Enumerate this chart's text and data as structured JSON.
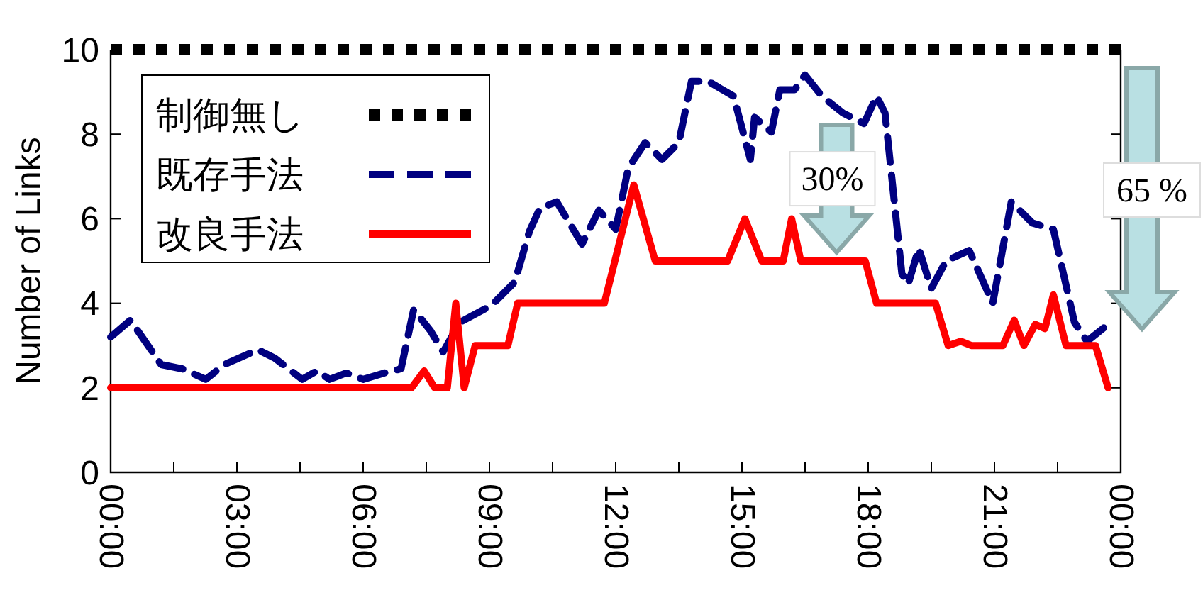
{
  "chart_data": {
    "type": "line",
    "ylabel": "Number of Links",
    "xlim": [
      0,
      24
    ],
    "ylim": [
      0,
      10
    ],
    "xticks": [
      {
        "value": 0,
        "label": "00:00"
      },
      {
        "value": 1.5,
        "label": null
      },
      {
        "value": 3,
        "label": "03:00"
      },
      {
        "value": 4.5,
        "label": null
      },
      {
        "value": 6,
        "label": "06:00"
      },
      {
        "value": 7.5,
        "label": null
      },
      {
        "value": 9,
        "label": "09:00"
      },
      {
        "value": 10.5,
        "label": null
      },
      {
        "value": 12,
        "label": "12:00"
      },
      {
        "value": 13.5,
        "label": null
      },
      {
        "value": 15,
        "label": "15:00"
      },
      {
        "value": 16.5,
        "label": null
      },
      {
        "value": 18,
        "label": "18:00"
      },
      {
        "value": 19.5,
        "label": null
      },
      {
        "value": 21,
        "label": "21:00"
      },
      {
        "value": 22.5,
        "label": null
      },
      {
        "value": 24,
        "label": "00:00"
      }
    ],
    "yticks": [
      0,
      2,
      4,
      6,
      8,
      10
    ],
    "grid": false,
    "legend": "top left",
    "annotations": [
      {
        "text": "30%",
        "x": 17.25,
        "y": 5.2
      },
      "65 %"
    ],
    "series": [
      {
        "name": "制御無し",
        "color": "#000000",
        "line_style": "dotted",
        "x": [
          0,
          24
        ],
        "values": [
          10,
          10
        ]
      },
      {
        "name": "既存手法",
        "color": "#000080",
        "line_style": "dashed",
        "x": [
          0,
          0.47,
          1.2,
          1.7,
          2.26,
          2.7,
          3.5,
          3.9,
          4.55,
          4.9,
          5.2,
          5.6,
          6.0,
          6.5,
          6.9,
          7.2,
          7.6,
          7.9,
          8.3,
          9.05,
          9.6,
          9.95,
          10.2,
          10.6,
          11.2,
          11.6,
          12.0,
          12.3,
          12.7,
          13.1,
          13.5,
          13.8,
          14.2,
          14.8,
          15.2,
          15.3,
          15.7,
          15.9,
          16.25,
          16.5,
          16.9,
          17.4,
          17.9,
          18.2,
          18.4,
          18.8,
          18.95,
          19.2,
          19.5,
          19.85,
          20.4,
          20.96,
          21.4,
          21.9,
          22.4,
          22.9,
          23.2,
          23.7
        ],
        "values": [
          3.2,
          3.6,
          2.55,
          2.45,
          2.2,
          2.55,
          2.9,
          2.7,
          2.2,
          2.4,
          2.2,
          2.35,
          2.2,
          2.35,
          2.45,
          3.85,
          3.35,
          2.85,
          3.55,
          3.95,
          4.5,
          5.7,
          6.25,
          6.4,
          5.4,
          6.2,
          5.75,
          7.2,
          7.8,
          7.4,
          7.8,
          9.25,
          9.25,
          8.9,
          7.4,
          8.4,
          8.05,
          9.05,
          9.05,
          9.4,
          8.9,
          8.5,
          8.25,
          8.9,
          8.5,
          4.7,
          4.45,
          5.3,
          4.35,
          5.0,
          5.25,
          4.0,
          6.4,
          5.9,
          5.75,
          3.55,
          3.1,
          3.5
        ]
      },
      {
        "name": "改良手法",
        "color": "#ff0000",
        "line_style": "solid",
        "x": [
          0,
          7.15,
          7.45,
          7.7,
          8.0,
          8.2,
          8.4,
          8.66,
          9.44,
          9.67,
          11.73,
          12.43,
          12.94,
          14.66,
          15.07,
          15.47,
          15.98,
          16.18,
          16.4,
          17.93,
          18.2,
          19.6,
          19.9,
          20.2,
          20.45,
          20.7,
          21.2,
          21.47,
          21.7,
          21.97,
          22.2,
          22.4,
          22.7,
          23.4,
          23.7
        ],
        "values": [
          2,
          2,
          2.4,
          2,
          2,
          4,
          2,
          3,
          3,
          4,
          4,
          6.8,
          5,
          5,
          6,
          5,
          5,
          6,
          5,
          5,
          4,
          4,
          3,
          3.1,
          3,
          3,
          3,
          3.6,
          3,
          3.5,
          3.4,
          4.2,
          3,
          3,
          2
        ]
      }
    ]
  }
}
